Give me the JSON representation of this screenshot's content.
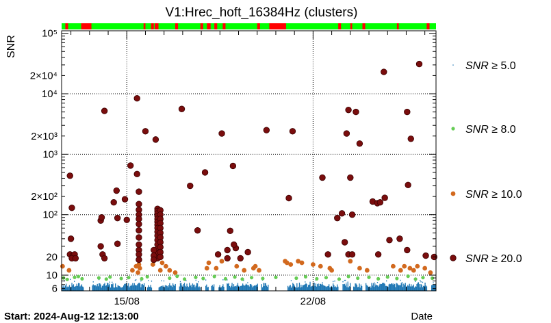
{
  "chart_data": {
    "type": "scatter",
    "title": "V1:Hrec_hoft_16384Hz (clusters)",
    "ylabel": "SNR",
    "xlabel": "Date",
    "y_scale": "log",
    "ylim": [
      5.5,
      110000
    ],
    "x_unit": "days since start",
    "xlim": [
      0,
      20.1
    ],
    "x_ticks": [
      {
        "x": 3.5,
        "label": "15/08"
      },
      {
        "x": 13.5,
        "label": "22/08"
      }
    ],
    "y_ticks": [
      {
        "v": 6,
        "label": "6"
      },
      {
        "v": 10,
        "label": "10"
      },
      {
        "v": 20,
        "label": "20"
      },
      {
        "v": 100,
        "label": "10²"
      },
      {
        "v": 200,
        "label": "2×10²"
      },
      {
        "v": 1000,
        "label": "10³"
      },
      {
        "v": 2000,
        "label": "2×10³"
      },
      {
        "v": 10000,
        "label": "10⁴"
      },
      {
        "v": 20000,
        "label": "2×10⁴"
      },
      {
        "v": 100000,
        "label": "10⁵"
      }
    ],
    "grid": true,
    "legend": {
      "placement": "right",
      "entries": [
        {
          "label_parts": [
            "SNR",
            " ≥ 5.0"
          ],
          "color": "#1f77b4"
        },
        {
          "label_parts": [
            "SNR",
            " ≥ 8.0"
          ],
          "color": "#66cc55"
        },
        {
          "label_parts": [
            "SNR",
            " ≥ 10.0"
          ],
          "color": "#d2691e"
        },
        {
          "label_parts": [
            "SNR",
            " ≥ 20.0"
          ],
          "color": "#7a0d0d"
        }
      ]
    },
    "segments_bar": {
      "ok_color": "#00ff00",
      "bad_color": "#ff0000",
      "bad_intervals": [
        [
          0.2,
          0.35
        ],
        [
          1.05,
          1.6
        ],
        [
          4.4,
          4.5
        ],
        [
          4.8,
          4.95
        ],
        [
          5.0,
          5.2
        ],
        [
          6.1,
          6.25
        ],
        [
          7.45,
          7.6
        ],
        [
          7.8,
          8.0
        ],
        [
          8.2,
          8.35
        ],
        [
          8.65,
          8.8
        ],
        [
          10.5,
          10.65
        ],
        [
          11.15,
          12.05
        ],
        [
          14.85,
          15.0
        ],
        [
          15.5,
          15.6
        ],
        [
          16.15,
          16.3
        ],
        [
          18.0,
          18.1
        ],
        [
          19.6,
          19.75
        ]
      ]
    },
    "series": [
      {
        "name": "SNR ≥ 20.0",
        "color": "#7a0d0d",
        "points": [
          [
            0.45,
            440
          ],
          [
            0.55,
            130
          ],
          [
            0.5,
            40
          ],
          [
            0.45,
            22
          ],
          [
            0.6,
            21
          ],
          [
            0.7,
            22
          ],
          [
            0.55,
            19
          ],
          [
            0.75,
            19
          ],
          [
            2.3,
            5200
          ],
          [
            2.8,
            160
          ],
          [
            2.95,
            250
          ],
          [
            2.1,
            80
          ],
          [
            2.15,
            90
          ],
          [
            2.1,
            30
          ],
          [
            2.2,
            22
          ],
          [
            2.3,
            19
          ],
          [
            3.0,
            88
          ],
          [
            3.0,
            33
          ],
          [
            3.4,
            180
          ],
          [
            3.5,
            82
          ],
          [
            3.7,
            650
          ],
          [
            4.05,
            470
          ],
          [
            4.05,
            8400
          ],
          [
            4.5,
            2400
          ],
          [
            5.05,
            1750
          ],
          [
            6.45,
            5600
          ],
          [
            6.9,
            300
          ],
          [
            7.7,
            500
          ],
          [
            7.3,
            55
          ],
          [
            8.6,
            2200
          ],
          [
            9.2,
            640
          ],
          [
            11.0,
            2500
          ],
          [
            12.4,
            2400
          ],
          [
            12.2,
            188
          ],
          [
            14.0,
            410
          ],
          [
            15.4,
            5400
          ],
          [
            15.3,
            2200
          ],
          [
            15.8,
            5000
          ],
          [
            16.0,
            1500
          ],
          [
            15.5,
            410
          ],
          [
            17.3,
            23000
          ],
          [
            18.55,
            5000
          ],
          [
            18.75,
            1800
          ],
          [
            19.2,
            31000
          ],
          [
            18.6,
            310
          ],
          [
            16.7,
            165
          ],
          [
            16.95,
            155
          ],
          [
            17.1,
            160
          ],
          [
            17.35,
            190
          ],
          [
            17.0,
            22
          ],
          [
            17.6,
            38
          ],
          [
            18.15,
            40
          ],
          [
            18.55,
            26
          ],
          [
            19.55,
            21
          ],
          [
            15.05,
            105
          ],
          [
            15.6,
            100
          ],
          [
            14.8,
            88
          ],
          [
            15.2,
            35
          ],
          [
            15.4,
            22
          ],
          [
            15.6,
            22
          ],
          [
            14.3,
            22
          ],
          [
            10.0,
            24
          ],
          [
            9.35,
            28
          ],
          [
            9.25,
            32
          ],
          [
            9.05,
            54
          ],
          [
            8.9,
            26
          ],
          [
            8.9,
            19
          ],
          [
            9.6,
            19
          ],
          [
            8.4,
            22
          ],
          [
            20.0,
            20
          ]
        ],
        "clusters": [
          {
            "x": 4.15,
            "values": [
              240,
              150,
              120,
              100,
              85,
              70,
              55,
              42,
              32,
              26,
              22,
              18
            ]
          },
          {
            "x": 5.15,
            "values": [
              125,
              115,
              105,
              95,
              85,
              76,
              68,
              60,
              52,
              45,
              38,
              32,
              27,
              23,
              19
            ]
          },
          {
            "x": 5.3,
            "values": [
              118,
              100,
              85,
              72,
              60,
              50,
              42,
              35,
              29,
              24,
              20
            ]
          },
          {
            "x": 4.95,
            "values": [
              26,
              21,
              18
            ]
          }
        ]
      },
      {
        "name": "SNR ≥ 10.0",
        "color": "#d2691e",
        "points": [
          [
            0.05,
            14
          ],
          [
            0.4,
            12
          ],
          [
            3.8,
            12
          ],
          [
            4.0,
            14
          ],
          [
            4.15,
            15
          ],
          [
            4.2,
            13
          ],
          [
            4.1,
            11
          ],
          [
            4.9,
            15
          ],
          [
            5.4,
            16
          ],
          [
            5.6,
            14
          ],
          [
            5.3,
            12
          ],
          [
            7.8,
            13
          ],
          [
            7.9,
            16
          ],
          [
            8.3,
            13
          ],
          [
            8.6,
            17
          ],
          [
            9.4,
            14
          ],
          [
            9.8,
            12
          ],
          [
            10.3,
            13
          ],
          [
            10.6,
            12
          ],
          [
            10.4,
            14
          ],
          [
            12.0,
            17
          ],
          [
            12.1,
            16
          ],
          [
            12.3,
            15
          ],
          [
            12.7,
            17
          ],
          [
            12.9,
            16
          ],
          [
            13.5,
            15
          ],
          [
            13.9,
            14
          ],
          [
            14.4,
            13
          ],
          [
            14.5,
            12
          ],
          [
            15.5,
            17
          ],
          [
            16.0,
            13
          ],
          [
            16.4,
            12
          ],
          [
            17.8,
            14
          ],
          [
            18.2,
            12
          ],
          [
            18.4,
            14
          ],
          [
            18.7,
            13
          ],
          [
            18.9,
            12
          ],
          [
            19.1,
            14
          ],
          [
            19.5,
            13
          ],
          [
            19.8,
            11
          ],
          [
            5.8,
            12
          ],
          [
            6.1,
            11
          ]
        ]
      },
      {
        "name": "SNR ≥ 8.0",
        "color": "#66cc55",
        "points": [
          [
            0.1,
            9
          ],
          [
            0.3,
            8.5
          ],
          [
            0.7,
            9.2
          ],
          [
            0.9,
            9.5
          ],
          [
            1.1,
            8.7
          ],
          [
            2.0,
            9
          ],
          [
            2.4,
            8.6
          ],
          [
            2.6,
            9.3
          ],
          [
            3.2,
            8.8
          ],
          [
            3.6,
            9.1
          ],
          [
            4.3,
            8.7
          ],
          [
            4.6,
            9.4
          ],
          [
            5.8,
            8.9
          ],
          [
            6.2,
            9.6
          ],
          [
            6.6,
            8.6
          ],
          [
            7.2,
            9.2
          ],
          [
            7.6,
            8.8
          ],
          [
            8.2,
            9.5
          ],
          [
            8.8,
            8.7
          ],
          [
            9.3,
            9.3
          ],
          [
            9.7,
            8.6
          ],
          [
            10.2,
            9.1
          ],
          [
            10.8,
            8.8
          ],
          [
            11.5,
            9.2
          ],
          [
            12.6,
            8.9
          ],
          [
            13.1,
            9.4
          ],
          [
            13.7,
            8.7
          ],
          [
            14.2,
            9.1
          ],
          [
            14.9,
            8.6
          ],
          [
            15.4,
            9.5
          ],
          [
            15.9,
            8.9
          ],
          [
            16.5,
            9.2
          ],
          [
            17.0,
            8.7
          ],
          [
            17.5,
            9.3
          ],
          [
            18.0,
            8.8
          ],
          [
            18.6,
            9.6
          ],
          [
            19.0,
            8.6
          ],
          [
            19.4,
            9.1
          ],
          [
            19.9,
            8.9
          ]
        ]
      },
      {
        "name": "SNR ≥ 5.0",
        "color": "#1f77b4",
        "band": {
          "base": 5.5,
          "height_low": 6.2,
          "height_high": 7.5
        },
        "gaps": [
          [
            1.15,
            1.6
          ],
          [
            4.45,
            4.55
          ],
          [
            4.85,
            5.2
          ],
          [
            6.1,
            6.3
          ],
          [
            7.45,
            7.7
          ],
          [
            7.85,
            8.0
          ],
          [
            8.2,
            8.4
          ],
          [
            8.7,
            8.85
          ],
          [
            10.5,
            10.7
          ],
          [
            11.1,
            12.1
          ],
          [
            14.85,
            15.05
          ],
          [
            15.5,
            15.65
          ],
          [
            16.1,
            16.3
          ],
          [
            19.6,
            19.8
          ]
        ]
      }
    ]
  },
  "footer": {
    "start_label": "Start: 2024-Aug-12 12:13:00",
    "date_label": "Date"
  }
}
